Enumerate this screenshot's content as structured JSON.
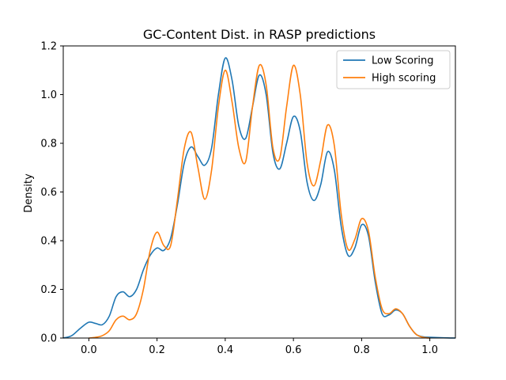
{
  "chart_data": {
    "type": "line",
    "title": "GC-Content Dist. in RASP predictions",
    "xlabel": "",
    "ylabel": "Density",
    "xlim": [
      -0.075,
      1.075
    ],
    "ylim": [
      0,
      1.2
    ],
    "xticks": [
      0.0,
      0.2,
      0.4,
      0.6,
      0.8,
      1.0
    ],
    "xtick_labels": [
      "0.0",
      "0.2",
      "0.4",
      "0.6",
      "0.8",
      "1.0"
    ],
    "yticks": [
      0.0,
      0.2,
      0.4,
      0.6,
      0.8,
      1.0,
      1.2
    ],
    "ytick_labels": [
      "0.0",
      "0.2",
      "0.4",
      "0.6",
      "0.8",
      "1.0",
      "1.2"
    ],
    "grid": false,
    "legend_position": "top-right",
    "series": [
      {
        "name": "Low Scoring",
        "color": "#1f77b4",
        "points": [
          [
            -0.075,
            0.0
          ],
          [
            -0.05,
            0.01
          ],
          [
            -0.025,
            0.04
          ],
          [
            0.0,
            0.065
          ],
          [
            0.02,
            0.06
          ],
          [
            0.04,
            0.055
          ],
          [
            0.06,
            0.09
          ],
          [
            0.08,
            0.17
          ],
          [
            0.1,
            0.19
          ],
          [
            0.12,
            0.17
          ],
          [
            0.14,
            0.2
          ],
          [
            0.16,
            0.28
          ],
          [
            0.18,
            0.34
          ],
          [
            0.2,
            0.37
          ],
          [
            0.22,
            0.36
          ],
          [
            0.24,
            0.41
          ],
          [
            0.26,
            0.55
          ],
          [
            0.28,
            0.72
          ],
          [
            0.3,
            0.785
          ],
          [
            0.32,
            0.745
          ],
          [
            0.34,
            0.71
          ],
          [
            0.36,
            0.78
          ],
          [
            0.38,
            1.0
          ],
          [
            0.4,
            1.15
          ],
          [
            0.42,
            1.06
          ],
          [
            0.44,
            0.87
          ],
          [
            0.46,
            0.82
          ],
          [
            0.48,
            0.95
          ],
          [
            0.5,
            1.08
          ],
          [
            0.52,
            1.0
          ],
          [
            0.54,
            0.76
          ],
          [
            0.56,
            0.695
          ],
          [
            0.58,
            0.8
          ],
          [
            0.6,
            0.91
          ],
          [
            0.62,
            0.85
          ],
          [
            0.64,
            0.64
          ],
          [
            0.66,
            0.565
          ],
          [
            0.68,
            0.63
          ],
          [
            0.7,
            0.765
          ],
          [
            0.72,
            0.69
          ],
          [
            0.74,
            0.46
          ],
          [
            0.76,
            0.34
          ],
          [
            0.78,
            0.37
          ],
          [
            0.8,
            0.465
          ],
          [
            0.82,
            0.42
          ],
          [
            0.84,
            0.23
          ],
          [
            0.86,
            0.1
          ],
          [
            0.88,
            0.095
          ],
          [
            0.9,
            0.115
          ],
          [
            0.92,
            0.1
          ],
          [
            0.94,
            0.05
          ],
          [
            0.96,
            0.015
          ],
          [
            0.98,
            0.005
          ],
          [
            1.0,
            0.003
          ],
          [
            1.04,
            0.001
          ],
          [
            1.075,
            0.0
          ]
        ]
      },
      {
        "name": "High scoring",
        "color": "#ff7f0e",
        "points": [
          [
            0.0,
            0.0
          ],
          [
            0.02,
            0.003
          ],
          [
            0.04,
            0.01
          ],
          [
            0.06,
            0.03
          ],
          [
            0.08,
            0.075
          ],
          [
            0.1,
            0.09
          ],
          [
            0.12,
            0.075
          ],
          [
            0.14,
            0.1
          ],
          [
            0.16,
            0.2
          ],
          [
            0.18,
            0.36
          ],
          [
            0.2,
            0.435
          ],
          [
            0.22,
            0.38
          ],
          [
            0.24,
            0.38
          ],
          [
            0.26,
            0.57
          ],
          [
            0.28,
            0.78
          ],
          [
            0.3,
            0.845
          ],
          [
            0.32,
            0.7
          ],
          [
            0.34,
            0.57
          ],
          [
            0.36,
            0.69
          ],
          [
            0.38,
            0.95
          ],
          [
            0.4,
            1.1
          ],
          [
            0.42,
            0.97
          ],
          [
            0.44,
            0.78
          ],
          [
            0.46,
            0.725
          ],
          [
            0.48,
            0.95
          ],
          [
            0.5,
            1.12
          ],
          [
            0.52,
            1.04
          ],
          [
            0.54,
            0.78
          ],
          [
            0.56,
            0.74
          ],
          [
            0.58,
            0.95
          ],
          [
            0.6,
            1.12
          ],
          [
            0.62,
            1.0
          ],
          [
            0.64,
            0.72
          ],
          [
            0.66,
            0.625
          ],
          [
            0.68,
            0.73
          ],
          [
            0.7,
            0.875
          ],
          [
            0.72,
            0.79
          ],
          [
            0.74,
            0.51
          ],
          [
            0.76,
            0.365
          ],
          [
            0.78,
            0.405
          ],
          [
            0.8,
            0.49
          ],
          [
            0.82,
            0.44
          ],
          [
            0.84,
            0.25
          ],
          [
            0.86,
            0.12
          ],
          [
            0.88,
            0.1
          ],
          [
            0.9,
            0.12
          ],
          [
            0.92,
            0.1
          ],
          [
            0.94,
            0.05
          ],
          [
            0.96,
            0.015
          ],
          [
            0.98,
            0.003
          ],
          [
            1.0,
            0.0
          ]
        ]
      }
    ]
  }
}
